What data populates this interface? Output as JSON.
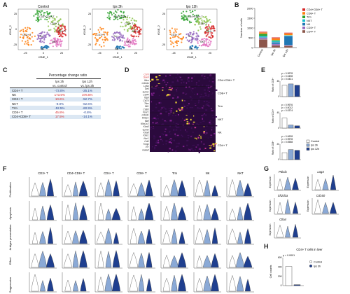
{
  "panels": {
    "A": {
      "letter": "A",
      "titles": [
        "Control",
        "lps 3h",
        "lps 12h"
      ],
      "xlabel": "tSNE_1",
      "ylabel": "tSNE_2",
      "x_ticks": [
        "-25",
        "0",
        "25"
      ],
      "y_ticks": [
        "25",
        "0",
        "-25"
      ],
      "cluster_labels": [
        "CD4+CD8+ T",
        "CD8+ T",
        "CD3+ T",
        "Trm",
        "NKT",
        "NK",
        "CD4+ T"
      ]
    },
    "B": {
      "letter": "B",
      "ylabel": "Number of cells",
      "legend": [
        "CD4+CD8+ T",
        "CD8+ T",
        "Trm",
        "NKT",
        "NK",
        "CD3+ T",
        "CD4+ T"
      ],
      "legend_colors": [
        "#d62728",
        "#ff7f0e",
        "#2ca02c",
        "#17becf",
        "#1f77b4",
        "#9467bd",
        "#8c564b"
      ]
    },
    "C": {
      "letter": "C",
      "header": "Percentage change ratio",
      "col1a": "lps 3h",
      "col1b": "vs. control",
      "col2a": "lps 12h",
      "col2b": "vs. lps 3h",
      "rows": [
        {
          "cell": "CD4+ T",
          "v1": "-73.0%",
          "v2": "-25.1%",
          "c1": "#1f3f8f",
          "c2": "#1f3f8f"
        },
        {
          "cell": "NK",
          "v1": "173.5%",
          "v2": "378.5%",
          "c1": "#d62728",
          "c2": "#d62728"
        },
        {
          "cell": "CD3+ T",
          "v1": "10.6%",
          "v2": "-52.7%",
          "c1": "#d62728",
          "c2": "#1f3f8f"
        },
        {
          "cell": "NKT",
          "v1": "-9.0%",
          "v2": "-62.6%",
          "c1": "#1f3f8f",
          "c2": "#1f3f8f"
        },
        {
          "cell": "Trm",
          "v1": "-52.5%",
          "v2": "-60.9%",
          "c1": "#1f3f8f",
          "c2": "#1f3f8f"
        },
        {
          "cell": "CD8+ T",
          "v1": "45.8%",
          "v2": "-0.8%",
          "c1": "#d62728",
          "c2": "#1f3f8f"
        },
        {
          "cell": "CD4+CD8+ T",
          "v1": "17.5%",
          "v2": "-14.1%",
          "c1": "#d62728",
          "c2": "#1f3f8f"
        }
      ]
    },
    "D": {
      "letter": "D",
      "genes": [
        "Ccr6",
        "Sox4",
        "Il6ra",
        "Cd24a",
        "Ly6a",
        "Sell",
        "Gzmc",
        "Cd44",
        "Itgal",
        "Cd74",
        "Trim",
        "Ifit1",
        "Cd83",
        "Fcer1",
        "Cd1d1",
        "Klrb1c",
        "Maf",
        "Klrb1c2",
        "Klra5",
        "Gzmk",
        "Klra8",
        "Klre1",
        "Ncr1",
        "Cd4",
        "Txnip",
        "Il7r",
        "Gata3"
      ],
      "gene_colors": [
        "#d62728",
        "#d62728",
        "#222",
        "#222",
        "#222",
        "#222",
        "#222",
        "#222",
        "#222",
        "#222",
        "#222",
        "#222",
        "#222",
        "#222",
        "#222",
        "#222",
        "#222",
        "#222",
        "#222",
        "#222",
        "#222",
        "#222",
        "#222",
        "#222",
        "#222",
        "#222",
        "#222"
      ],
      "groups": [
        "CD4+CD8+ T",
        "CD8+ T",
        "Trm",
        "NKT",
        "NK",
        "CD4+ T"
      ]
    },
    "E": {
      "letter": "E",
      "ylabels": [
        "Ratio of CD3+\nT cells (%)",
        "Ratio of CD4+\nT cells (%)",
        "Ratio of CD8+\nT cells (%)"
      ],
      "pvals": [
        [
          "p = 0.9978",
          "p = 0.0498",
          "p = 0.0431"
        ],
        [
          "p = 0.9976",
          "p = 0.0012",
          "p = 0.0374"
        ],
        [
          "p = 0.0628",
          "p = 0.9978",
          "p = 0.0558"
        ]
      ],
      "legend": [
        "Control",
        "lps 3h",
        "lps 12h"
      ]
    },
    "F": {
      "letter": "F",
      "columns": [
        "CD3+ T",
        "CD4+CD8+ T",
        "CD4+ T",
        "CD8+ T",
        "Trm",
        "NK",
        "NKT"
      ],
      "rows": [
        "Proliferation",
        "Apoptosis",
        "Antigen presentation",
        "Effect",
        "Suppression"
      ]
    },
    "G": {
      "letter": "G",
      "genes": [
        "Pdcd1",
        "Lag3",
        "Sh2d1a",
        "Cd160",
        "Ctla4"
      ],
      "ylabel": "Expression"
    },
    "H": {
      "letter": "H",
      "title": "CD4+ T cells in liver",
      "ylabel": "Cell counts",
      "pval": "p < 0.0001",
      "legend": [
        "Control",
        "lps 3h"
      ]
    }
  },
  "chart_data": [
    {
      "type": "bar",
      "panel": "B",
      "categories": [
        "Control",
        "lps 3h",
        "lps 12h"
      ],
      "stacked": true,
      "series": [
        {
          "name": "CD4+ T",
          "values": [
            420,
            110,
            90
          ]
        },
        {
          "name": "CD3+ T",
          "values": [
            70,
            70,
            35
          ]
        },
        {
          "name": "NK",
          "values": [
            40,
            100,
            470
          ]
        },
        {
          "name": "NKT",
          "values": [
            60,
            55,
            20
          ]
        },
        {
          "name": "Trm",
          "values": [
            120,
            55,
            25
          ]
        },
        {
          "name": "CD8+ T",
          "values": [
            60,
            85,
            85
          ]
        },
        {
          "name": "CD4+CD8+ T",
          "values": [
            40,
            45,
            40
          ]
        }
      ],
      "ylim": [
        0,
        2000
      ],
      "yticks": [
        0,
        500,
        1000,
        1500,
        2000
      ],
      "ylabel": "Number of cells"
    },
    {
      "type": "bar",
      "panel": "E",
      "categories": [
        "Control",
        "lps 3h",
        "lps 12h"
      ],
      "series": [
        {
          "name": "CD3+ T",
          "values": [
            33,
            37,
            33
          ],
          "ylim": [
            0,
            45
          ]
        },
        {
          "name": "CD4+ T",
          "values": [
            26,
            8,
            6
          ],
          "ylim": [
            0,
            40
          ]
        },
        {
          "name": "CD8+ T",
          "values": [
            9,
            13,
            12
          ],
          "ylim": [
            0,
            20
          ]
        }
      ]
    },
    {
      "type": "bar",
      "panel": "H",
      "categories": [
        "Control",
        "lps 3h"
      ],
      "values": [
        410,
        20
      ],
      "ylim": [
        0,
        600
      ],
      "yticks": [
        0,
        200,
        400,
        600
      ]
    }
  ]
}
